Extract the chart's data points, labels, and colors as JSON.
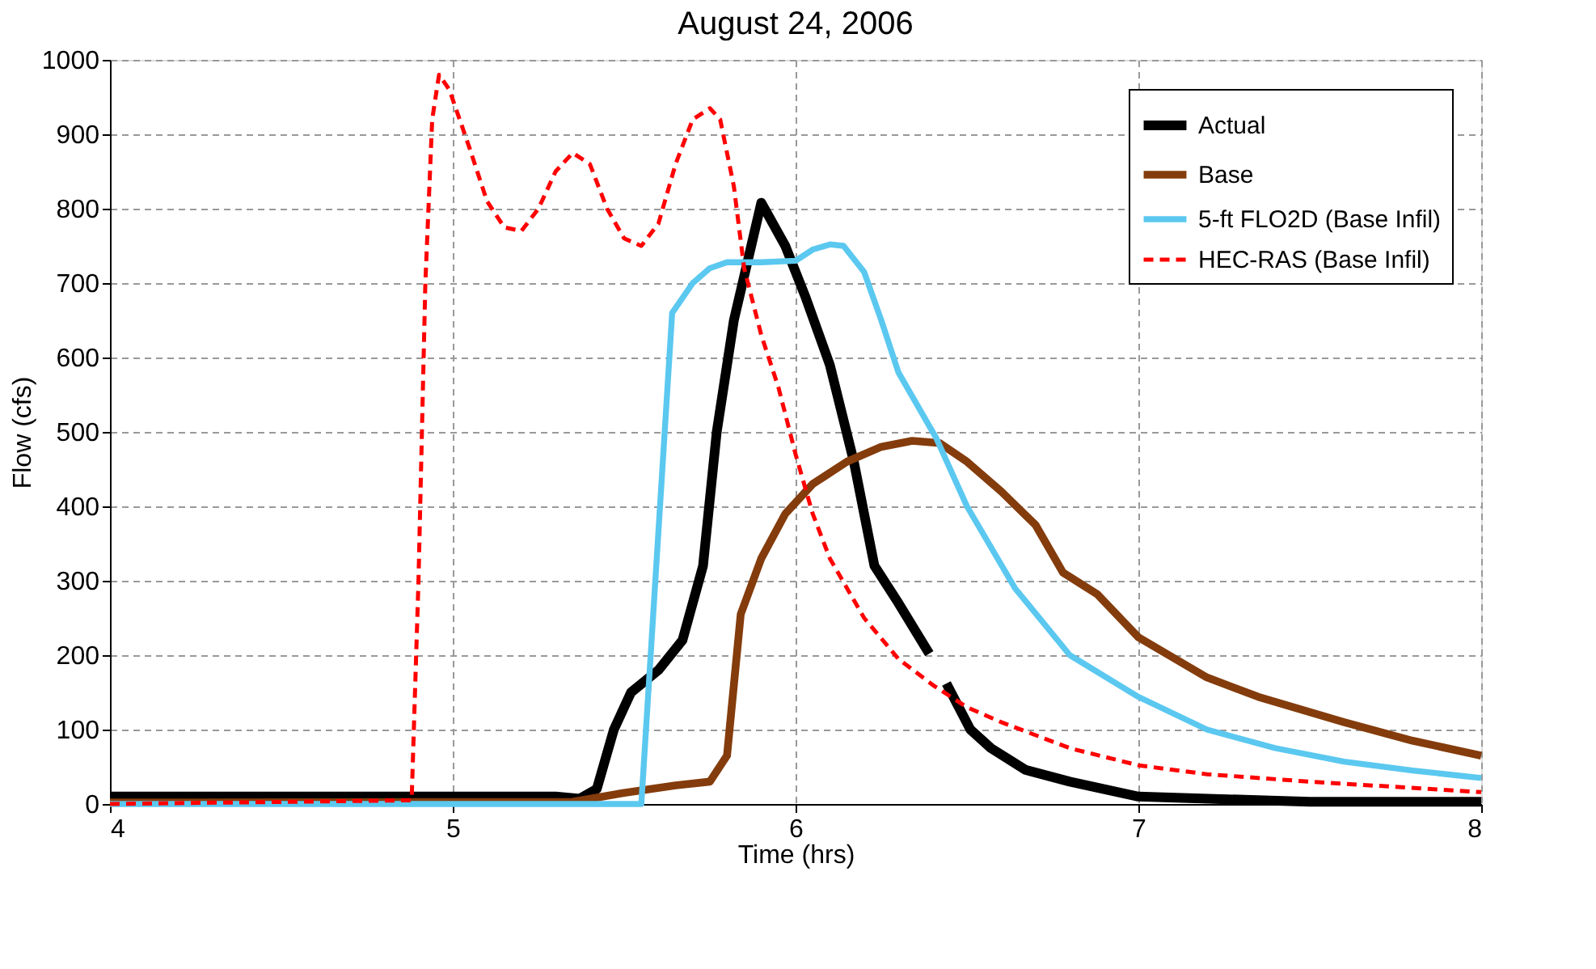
{
  "chart_data": {
    "type": "line",
    "title": "August 24, 2006",
    "xlabel": "Time (hrs)",
    "ylabel": "Flow (cfs)",
    "xlim": [
      4,
      8
    ],
    "xticks": [
      4,
      5,
      6,
      7,
      8
    ],
    "ylim": [
      0,
      1000
    ],
    "yticks": [
      0,
      100,
      200,
      300,
      400,
      500,
      600,
      700,
      800,
      900,
      1000
    ],
    "grid": true,
    "legend": "top right",
    "series": [
      {
        "name": "Actual",
        "color": "#000000",
        "line_style": "solid",
        "x": [
          4,
          5.3,
          5.37,
          5.42,
          5.47,
          5.52,
          5.6,
          5.67,
          5.73,
          5.77,
          5.82,
          5.9,
          5.97,
          6.03,
          6.1,
          6.17,
          6.23,
          6.3,
          6.39,
          6.41,
          6.44,
          6.51,
          6.57,
          6.67,
          6.8,
          7.0,
          7.5,
          8
        ],
        "values": [
          10,
          10,
          7,
          20,
          100,
          150,
          180,
          220,
          320,
          500,
          650,
          808,
          750,
          680,
          590,
          460,
          320,
          270,
          202,
          null,
          162,
          100,
          75,
          46,
          30,
          10,
          3,
          3
        ]
      },
      {
        "name": "Base",
        "color": "#843c0c",
        "line_style": "solid",
        "x": [
          4,
          5.35,
          5.5,
          5.65,
          5.75,
          5.8,
          5.84,
          5.9,
          5.97,
          6.05,
          6.15,
          6.25,
          6.34,
          6.42,
          6.5,
          6.6,
          6.7,
          6.78,
          6.88,
          7.0,
          7.2,
          7.35,
          7.6,
          7.8,
          8
        ],
        "values": [
          2,
          3,
          15,
          25,
          30,
          65,
          255,
          330,
          390,
          430,
          460,
          480,
          488,
          485,
          460,
          420,
          375,
          311,
          282,
          224,
          170,
          144,
          110,
          85,
          65
        ]
      },
      {
        "name": "5-ft FLO2D (Base Infil)",
        "color": "#5bc8f0",
        "line_style": "solid",
        "x": [
          4,
          5.55,
          5.64,
          5.7,
          5.75,
          5.8,
          5.9,
          6.0,
          6.05,
          6.1,
          6.14,
          6.2,
          6.25,
          6.3,
          6.41,
          6.5,
          6.64,
          6.8,
          7.0,
          7.2,
          7.4,
          7.6,
          7.8,
          8
        ],
        "values": [
          0,
          0,
          660,
          700,
          720,
          728,
          728,
          730,
          745,
          752,
          750,
          715,
          650,
          580,
          492,
          400,
          290,
          200,
          144,
          100,
          75,
          57,
          45,
          35
        ]
      },
      {
        "name": "HEC-RAS (Base Infil)",
        "color": "#ff0000",
        "line_style": "dashed",
        "x": [
          4,
          4.88,
          4.9,
          4.92,
          4.94,
          4.96,
          4.99,
          5.05,
          5.1,
          5.15,
          5.2,
          5.25,
          5.3,
          5.35,
          5.4,
          5.45,
          5.5,
          5.55,
          5.6,
          5.65,
          5.7,
          5.75,
          5.78,
          5.82,
          5.85,
          5.9,
          5.95,
          6.0,
          6.05,
          6.1,
          6.2,
          6.3,
          6.4,
          6.5,
          6.6,
          6.8,
          7.0,
          7.2,
          7.5,
          8
        ],
        "values": [
          0,
          5,
          300,
          700,
          920,
          980,
          960,
          880,
          810,
          775,
          770,
          800,
          850,
          875,
          860,
          800,
          760,
          750,
          780,
          860,
          920,
          935,
          920,
          830,
          720,
          630,
          560,
          470,
          390,
          330,
          250,
          195,
          160,
          130,
          110,
          75,
          52,
          40,
          30,
          16
        ]
      }
    ]
  }
}
